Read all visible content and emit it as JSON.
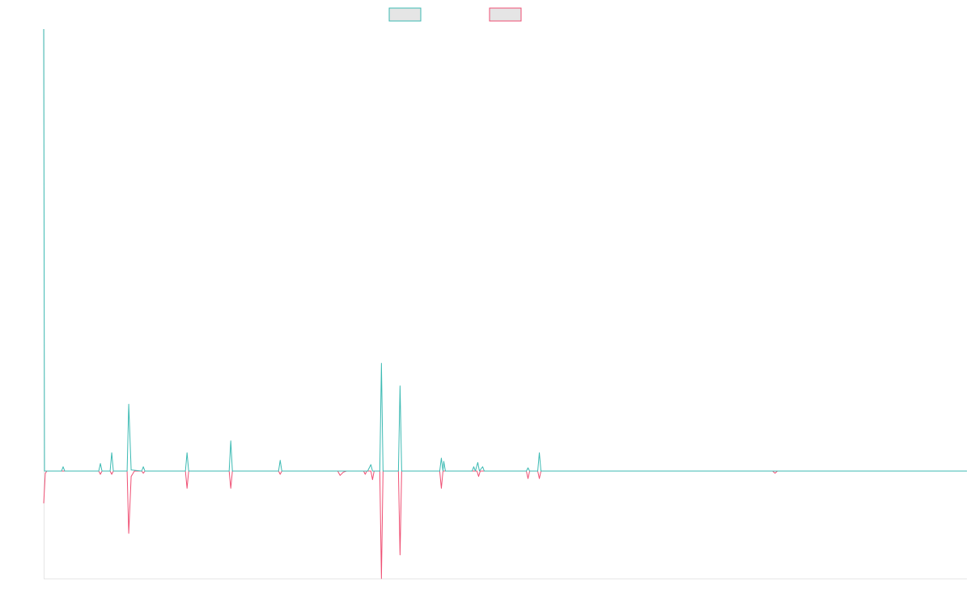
{
  "colors": {
    "series_a": "#3cbab3",
    "series_b": "#ef4f73",
    "legend_fill": "#e5e5e5",
    "axis": "#e6e6e6"
  },
  "chart_data": {
    "type": "line",
    "title": "",
    "xlabel": "",
    "ylabel": "",
    "legend_position": "top-center",
    "grid": false,
    "x_range": [
      0,
      1140
    ],
    "ylim": [
      -1,
      4.1
    ],
    "series": [
      {
        "color": "#3cbab3",
        "points": [
          [
            0,
            4.1
          ],
          [
            1,
            0.0
          ],
          [
            22,
            0.0
          ],
          [
            24,
            0.04
          ],
          [
            26,
            0.0
          ],
          [
            68,
            0.0
          ],
          [
            70,
            0.07
          ],
          [
            72,
            0.0
          ],
          [
            82,
            0.0
          ],
          [
            84,
            0.17
          ],
          [
            86,
            0.0
          ],
          [
            103,
            0.0
          ],
          [
            105,
            0.62
          ],
          [
            108,
            0.01
          ],
          [
            121,
            0.0
          ],
          [
            123,
            0.04
          ],
          [
            125,
            0.0
          ],
          [
            175,
            0.0
          ],
          [
            177,
            0.17
          ],
          [
            179,
            0.0
          ],
          [
            229,
            0.0
          ],
          [
            231,
            0.28
          ],
          [
            233,
            0.0
          ],
          [
            290,
            0.0
          ],
          [
            292,
            0.1
          ],
          [
            294,
            0.0
          ],
          [
            400,
            0.0
          ],
          [
            404,
            0.06
          ],
          [
            406,
            0.0
          ],
          [
            415,
            0.0
          ],
          [
            417,
            1.0
          ],
          [
            419,
            0.0
          ],
          [
            438,
            0.0
          ],
          [
            440,
            0.79
          ],
          [
            442,
            0.0
          ],
          [
            489,
            0.0
          ],
          [
            491,
            0.12
          ],
          [
            493,
            0.0
          ],
          [
            494,
            0.09
          ],
          [
            496,
            0.0
          ],
          [
            529,
            0.0
          ],
          [
            531,
            0.04
          ],
          [
            533,
            0.0
          ],
          [
            536,
            0.08
          ],
          [
            538,
            0.0
          ],
          [
            542,
            0.04
          ],
          [
            544,
            0.0
          ],
          [
            596,
            0.0
          ],
          [
            598,
            0.03
          ],
          [
            600,
            0.0
          ],
          [
            610,
            0.0
          ],
          [
            612,
            0.17
          ],
          [
            614,
            0.0
          ],
          [
            1140,
            0.0
          ]
        ]
      },
      {
        "color": "#ef4f73",
        "points": [
          [
            0,
            -0.3
          ],
          [
            2,
            -0.02
          ],
          [
            4,
            0.0
          ],
          [
            68,
            0.0
          ],
          [
            70,
            -0.03
          ],
          [
            72,
            0.0
          ],
          [
            82,
            0.0
          ],
          [
            84,
            -0.03
          ],
          [
            86,
            0.0
          ],
          [
            103,
            0.0
          ],
          [
            105,
            -0.58
          ],
          [
            108,
            -0.05
          ],
          [
            112,
            0.0
          ],
          [
            121,
            0.0
          ],
          [
            123,
            -0.02
          ],
          [
            125,
            0.0
          ],
          [
            175,
            0.0
          ],
          [
            177,
            -0.16
          ],
          [
            179,
            0.0
          ],
          [
            229,
            0.0
          ],
          [
            231,
            -0.16
          ],
          [
            233,
            0.0
          ],
          [
            290,
            0.0
          ],
          [
            292,
            -0.03
          ],
          [
            294,
            0.0
          ],
          [
            363,
            0.0
          ],
          [
            366,
            -0.04
          ],
          [
            370,
            -0.01
          ],
          [
            374,
            0.0
          ],
          [
            395,
            0.0
          ],
          [
            397,
            -0.03
          ],
          [
            399,
            0.0
          ],
          [
            404,
            0.0
          ],
          [
            406,
            -0.08
          ],
          [
            408,
            0.0
          ],
          [
            415,
            0.0
          ],
          [
            417,
            -1.0
          ],
          [
            419,
            0.0
          ],
          [
            438,
            0.0
          ],
          [
            440,
            -0.78
          ],
          [
            442,
            0.0
          ],
          [
            489,
            0.0
          ],
          [
            491,
            -0.16
          ],
          [
            493,
            0.0
          ],
          [
            535,
            0.0
          ],
          [
            537,
            -0.05
          ],
          [
            539,
            0.0
          ],
          [
            596,
            0.0
          ],
          [
            598,
            -0.07
          ],
          [
            600,
            0.0
          ],
          [
            610,
            0.0
          ],
          [
            612,
            -0.07
          ],
          [
            614,
            0.0
          ],
          [
            900,
            0.0
          ],
          [
            903,
            -0.02
          ],
          [
            906,
            0.0
          ],
          [
            1140,
            0.0
          ]
        ]
      }
    ]
  }
}
